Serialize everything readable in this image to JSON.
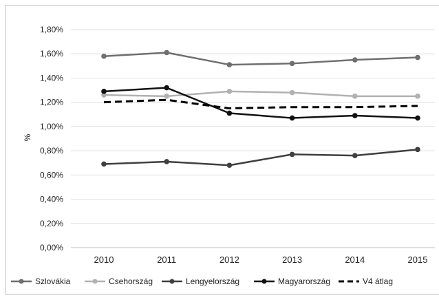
{
  "chart_data": {
    "type": "line",
    "title": "",
    "xlabel": "",
    "ylabel": "%",
    "categories": [
      "2010",
      "2011",
      "2012",
      "2013",
      "2014",
      "2015"
    ],
    "ylim": [
      0,
      1.8
    ],
    "yticks": [
      "0,00%",
      "0,20%",
      "0,40%",
      "0,60%",
      "0,80%",
      "1,00%",
      "1,20%",
      "1,40%",
      "1,60%",
      "1,80%"
    ],
    "grid": true,
    "legend_position": "bottom",
    "series": [
      {
        "name": "Szlovákia",
        "color": "#6f6f6f",
        "dashed": false,
        "values": [
          1.58,
          1.61,
          1.51,
          1.52,
          1.55,
          1.57
        ]
      },
      {
        "name": "Csehország",
        "color": "#b1b1b1",
        "dashed": false,
        "values": [
          1.26,
          1.25,
          1.29,
          1.28,
          1.25,
          1.25
        ]
      },
      {
        "name": "Lengyelország",
        "color": "#3f3f3f",
        "dashed": false,
        "values": [
          0.69,
          0.71,
          0.68,
          0.77,
          0.76,
          0.81
        ]
      },
      {
        "name": "Magyarország",
        "color": "#111111",
        "dashed": false,
        "values": [
          1.29,
          1.32,
          1.11,
          1.07,
          1.09,
          1.07
        ]
      },
      {
        "name": "V4 átlag",
        "color": "#000000",
        "dashed": true,
        "values": [
          1.2,
          1.22,
          1.15,
          1.16,
          1.16,
          1.17
        ]
      }
    ]
  }
}
